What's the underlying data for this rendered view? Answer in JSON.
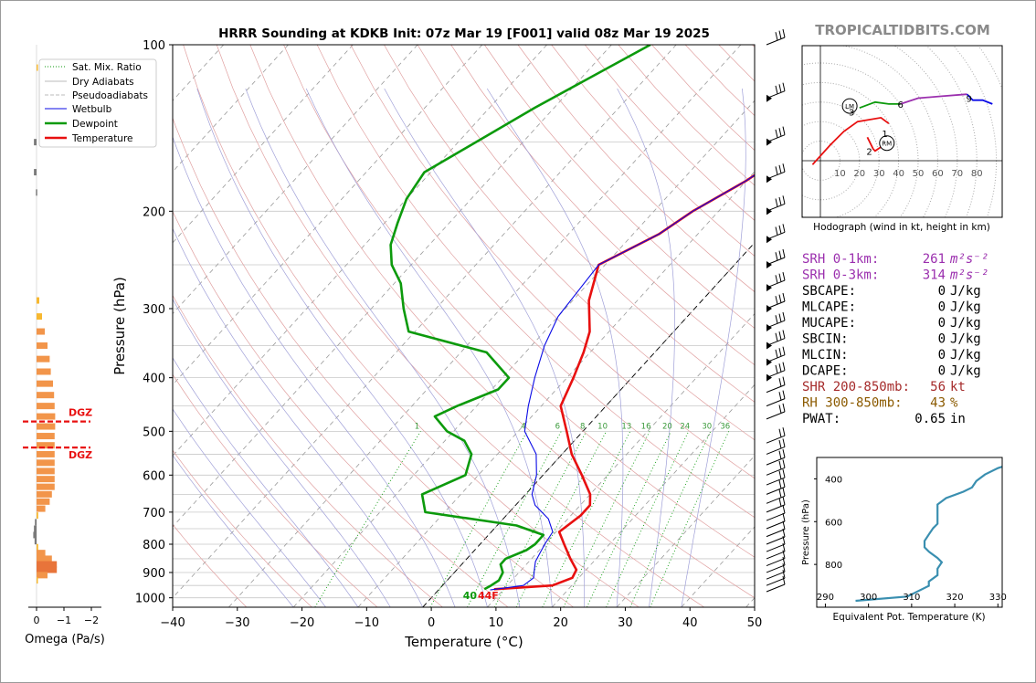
{
  "title": "HRRR Sounding at KDKB Init: 07z Mar 19 [F001] valid 08z Mar 19 2025",
  "watermark": "TROPICALTIDBITS.COM",
  "legend": {
    "sat_mix_ratio": "Sat. Mix. Ratio",
    "dry_adiabats": "Dry Adiabats",
    "pseudoadiabats": "Pseudoadiabats",
    "wetbulb": "Wetbulb",
    "dewpoint": "Dewpoint",
    "temperature": "Temperature"
  },
  "surface": {
    "dewpoint_f": "40",
    "temperature_f": "44F"
  },
  "dgz_label": "DGZ",
  "omega_axis": {
    "label": "Omega (Pa/s)",
    "ticks": [
      "0",
      "−1",
      "−2"
    ]
  },
  "hodograph": {
    "caption": "Hodograph (wind in kt, height in km)",
    "ring_labels": [
      "10",
      "20",
      "30",
      "40",
      "50",
      "60",
      "70",
      "80"
    ],
    "lm": "LM",
    "rm": "RM"
  },
  "indices": [
    {
      "label": "SRH 0-1km:",
      "value": "261",
      "unit": "m²s⁻²",
      "color": "#9b2fae"
    },
    {
      "label": "SRH 0-3km:",
      "value": "314",
      "unit": "m²s⁻²",
      "color": "#9b2fae"
    },
    {
      "label": "SBCAPE:",
      "value": "0",
      "unit": "J/kg",
      "color": "#000000"
    },
    {
      "label": "MLCAPE:",
      "value": "0",
      "unit": "J/kg",
      "color": "#000000"
    },
    {
      "label": "MUCAPE:",
      "value": "0",
      "unit": "J/kg",
      "color": "#000000"
    },
    {
      "label": "SBCIN:",
      "value": "0",
      "unit": "J/kg",
      "color": "#000000"
    },
    {
      "label": "MLCIN:",
      "value": "0",
      "unit": "J/kg",
      "color": "#000000"
    },
    {
      "label": "DCAPE:",
      "value": "0",
      "unit": "J/kg",
      "color": "#000000"
    },
    {
      "label": "SHR 200-850mb:",
      "value": "56",
      "unit": "kt",
      "color": "#a52a2a"
    },
    {
      "label": "RH 300-850mb:",
      "value": "43",
      "unit": "%",
      "color": "#8b5a00"
    },
    {
      "label": "PWAT:",
      "value": "0.65",
      "unit": "in",
      "color": "#000000"
    }
  ],
  "chart_data": [
    {
      "type": "line",
      "xlabel": "Temperature (°C)",
      "ylabel": "Pressure (hPa)",
      "xlim": [
        -40,
        50
      ],
      "ylim": [
        1040,
        100
      ],
      "y_scale": "log",
      "x_ticks": [
        "−40",
        "−30",
        "−20",
        "−10",
        "0",
        "10",
        "20",
        "30",
        "40",
        "50"
      ],
      "y_ticks": [
        "100",
        "200",
        "300",
        "400",
        "500",
        "600",
        "700",
        "800",
        "900",
        "1000"
      ],
      "mixing_ratio_labels": [
        "1",
        "4",
        "6",
        "8",
        "10",
        "13",
        "16",
        "20",
        "24",
        "30",
        "36"
      ],
      "series": [
        {
          "name": "Temperature",
          "color": "#e81010",
          "points": [
            [
              8.5,
              965
            ],
            [
              17,
              950
            ],
            [
              19,
              920
            ],
            [
              18.5,
              890
            ],
            [
              16,
              850
            ],
            [
              13,
              800
            ],
            [
              10.5,
              760
            ],
            [
              11.5,
              710
            ],
            [
              11.5,
              680
            ],
            [
              10,
              650
            ],
            [
              6,
              600
            ],
            [
              1.5,
              550
            ],
            [
              -2.5,
              500
            ],
            [
              -7,
              450
            ],
            [
              -9,
              400
            ],
            [
              -11,
              360
            ],
            [
              -13,
              330
            ],
            [
              -17.5,
              290
            ],
            [
              -21,
              250
            ],
            [
              -16,
              220
            ],
            [
              -14,
              200
            ],
            [
              -10,
              176
            ],
            [
              -9,
              168
            ],
            [
              -7,
              163
            ],
            [
              -3,
              145
            ],
            [
              -1,
              120
            ],
            [
              0,
              100
            ]
          ]
        },
        {
          "name": "Wetbulb",
          "color": "#0a0ae6",
          "points": [
            [
              8,
              968
            ],
            [
              12.5,
              950
            ],
            [
              13,
              920
            ],
            [
              12,
              890
            ],
            [
              11,
              860
            ],
            [
              10.5,
              830
            ],
            [
              10,
              800
            ],
            [
              9.5,
              760
            ],
            [
              7,
              720
            ],
            [
              3,
              680
            ],
            [
              1,
              650
            ],
            [
              -1,
              600
            ],
            [
              -4,
              550
            ],
            [
              -9,
              500
            ],
            [
              -12,
              450
            ],
            [
              -15,
              400
            ],
            [
              -18,
              350
            ],
            [
              -20,
              310
            ],
            [
              -21,
              250
            ],
            [
              -16,
              220
            ],
            [
              -14,
              200
            ],
            [
              -10,
              176
            ],
            [
              -9,
              168
            ],
            [
              -7,
              163
            ],
            [
              -3,
              145
            ],
            [
              -1,
              120
            ],
            [
              0,
              100
            ]
          ]
        },
        {
          "name": "Dewpoint",
          "color": "#0c9a0c",
          "points": [
            [
              7,
              965
            ],
            [
              7.5,
              950
            ],
            [
              8,
              930
            ],
            [
              7.5,
              900
            ],
            [
              6,
              870
            ],
            [
              6,
              850
            ],
            [
              8,
              820
            ],
            [
              8.5,
              800
            ],
            [
              8.5,
              770
            ],
            [
              3,
              740
            ],
            [
              -13,
              700
            ],
            [
              -16,
              650
            ],
            [
              -12,
              600
            ],
            [
              -14,
              550
            ],
            [
              -17,
              520
            ],
            [
              -21,
              500
            ],
            [
              -25,
              470
            ],
            [
              -23,
              450
            ],
            [
              -19,
              420
            ],
            [
              -19,
              400
            ],
            [
              -26,
              360
            ],
            [
              -41,
              330
            ],
            [
              -45,
              300
            ],
            [
              -49,
              270
            ],
            [
              -53,
              250
            ],
            [
              -56,
              230
            ],
            [
              -58,
              210
            ],
            [
              -60,
              190
            ],
            [
              -61,
              170
            ],
            [
              -53,
              130
            ],
            [
              -44,
              100
            ]
          ]
        }
      ]
    },
    {
      "type": "bar",
      "xlabel": "Omega (Pa/s)",
      "xlim": [
        0.3,
        -2.3
      ],
      "bars": [
        {
          "p": 110,
          "v": -0.02
        },
        {
          "p": 150,
          "v": 0.08
        },
        {
          "p": 170,
          "v": 0.08
        },
        {
          "p": 185,
          "v": 0.02
        },
        {
          "p": 290,
          "v": -0.05
        },
        {
          "p": 310,
          "v": -0.1
        },
        {
          "p": 330,
          "v": -0.15
        },
        {
          "p": 350,
          "v": -0.2
        },
        {
          "p": 370,
          "v": -0.24
        },
        {
          "p": 390,
          "v": -0.26
        },
        {
          "p": 410,
          "v": -0.3
        },
        {
          "p": 430,
          "v": -0.32
        },
        {
          "p": 450,
          "v": -0.33
        },
        {
          "p": 470,
          "v": -0.34
        },
        {
          "p": 490,
          "v": -0.34
        },
        {
          "p": 510,
          "v": -0.33
        },
        {
          "p": 530,
          "v": -0.33
        },
        {
          "p": 550,
          "v": -0.33
        },
        {
          "p": 570,
          "v": -0.33
        },
        {
          "p": 590,
          "v": -0.33
        },
        {
          "p": 610,
          "v": -0.33
        },
        {
          "p": 630,
          "v": -0.33
        },
        {
          "p": 650,
          "v": -0.28
        },
        {
          "p": 670,
          "v": -0.24
        },
        {
          "p": 690,
          "v": -0.16
        },
        {
          "p": 710,
          "v": -0.03
        },
        {
          "p": 730,
          "v": 0.05
        },
        {
          "p": 750,
          "v": 0.08
        },
        {
          "p": 770,
          "v": 0.1
        },
        {
          "p": 790,
          "v": 0.06
        },
        {
          "p": 810,
          "v": -0.03
        },
        {
          "p": 830,
          "v": -0.16
        },
        {
          "p": 850,
          "v": -0.28
        },
        {
          "p": 870,
          "v": -0.37
        },
        {
          "p": 890,
          "v": -0.37
        },
        {
          "p": 910,
          "v": -0.2
        },
        {
          "p": 930,
          "v": -0.02
        }
      ],
      "dgz_pressures": [
        480,
        535
      ]
    },
    {
      "type": "line",
      "title": "Hodograph (wind in kt, height in km)",
      "height_labels": [
        {
          "label": "1",
          "u": 33,
          "v": 14
        },
        {
          "label": "2",
          "u": 25,
          "v": 5
        },
        {
          "label": "3",
          "u": 16,
          "v": 25
        },
        {
          "label": "6",
          "u": 41,
          "v": 29
        },
        {
          "label": "9",
          "u": 76,
          "v": 32
        }
      ],
      "segments": [
        {
          "color": "#e81010",
          "points": [
            [
              -4,
              -2
            ],
            [
              5,
              8
            ],
            [
              12,
              15
            ],
            [
              19,
              20
            ],
            [
              31,
              22
            ],
            [
              35,
              19
            ]
          ]
        },
        {
          "color": "#e81010",
          "points": [
            [
              24,
              12
            ],
            [
              27,
              6
            ],
            [
              28,
              5
            ],
            [
              31,
              7
            ]
          ]
        },
        {
          "color": "#0c9a0c",
          "points": [
            [
              20,
              27
            ],
            [
              28,
              30
            ],
            [
              35,
              29
            ],
            [
              41,
              29
            ]
          ]
        },
        {
          "color": "#9b2fae",
          "points": [
            [
              41,
              29
            ],
            [
              50,
              32
            ],
            [
              62,
              33
            ],
            [
              75,
              34
            ]
          ]
        },
        {
          "color": "#0a0ae6",
          "points": [
            [
              75,
              34
            ],
            [
              78,
              31
            ],
            [
              83,
              31
            ],
            [
              88,
              29
            ]
          ]
        }
      ],
      "storm_motion": {
        "LM": [
          15,
          28
        ],
        "RM": [
          34,
          9
        ]
      }
    },
    {
      "type": "line",
      "xlabel": "Equivalent Pot. Temperature (K)",
      "ylabel": "Pressure (hPa)",
      "xlim": [
        288,
        331
      ],
      "ylim": [
        1000,
        300
      ],
      "x_ticks": [
        "290",
        "300",
        "310",
        "320",
        "330"
      ],
      "y_ticks": [
        "400",
        "600",
        "800"
      ],
      "series": [
        {
          "name": "",
          "color": "#3a8fb0",
          "points": [
            [
              297,
              970
            ],
            [
              309,
              950
            ],
            [
              314,
              900
            ],
            [
              314,
              880
            ],
            [
              316,
              850
            ],
            [
              316,
              820
            ],
            [
              317,
              790
            ],
            [
              316,
              770
            ],
            [
              314,
              740
            ],
            [
              313,
              720
            ],
            [
              313,
              690
            ],
            [
              314,
              660
            ],
            [
              315,
              630
            ],
            [
              316,
              610
            ],
            [
              316,
              580
            ],
            [
              316,
              550
            ],
            [
              316,
              520
            ],
            [
              318,
              490
            ],
            [
              322,
              460
            ],
            [
              324,
              440
            ],
            [
              325,
              410
            ],
            [
              327,
              380
            ],
            [
              330,
              350
            ],
            [
              333,
              330
            ]
          ]
        }
      ]
    }
  ]
}
